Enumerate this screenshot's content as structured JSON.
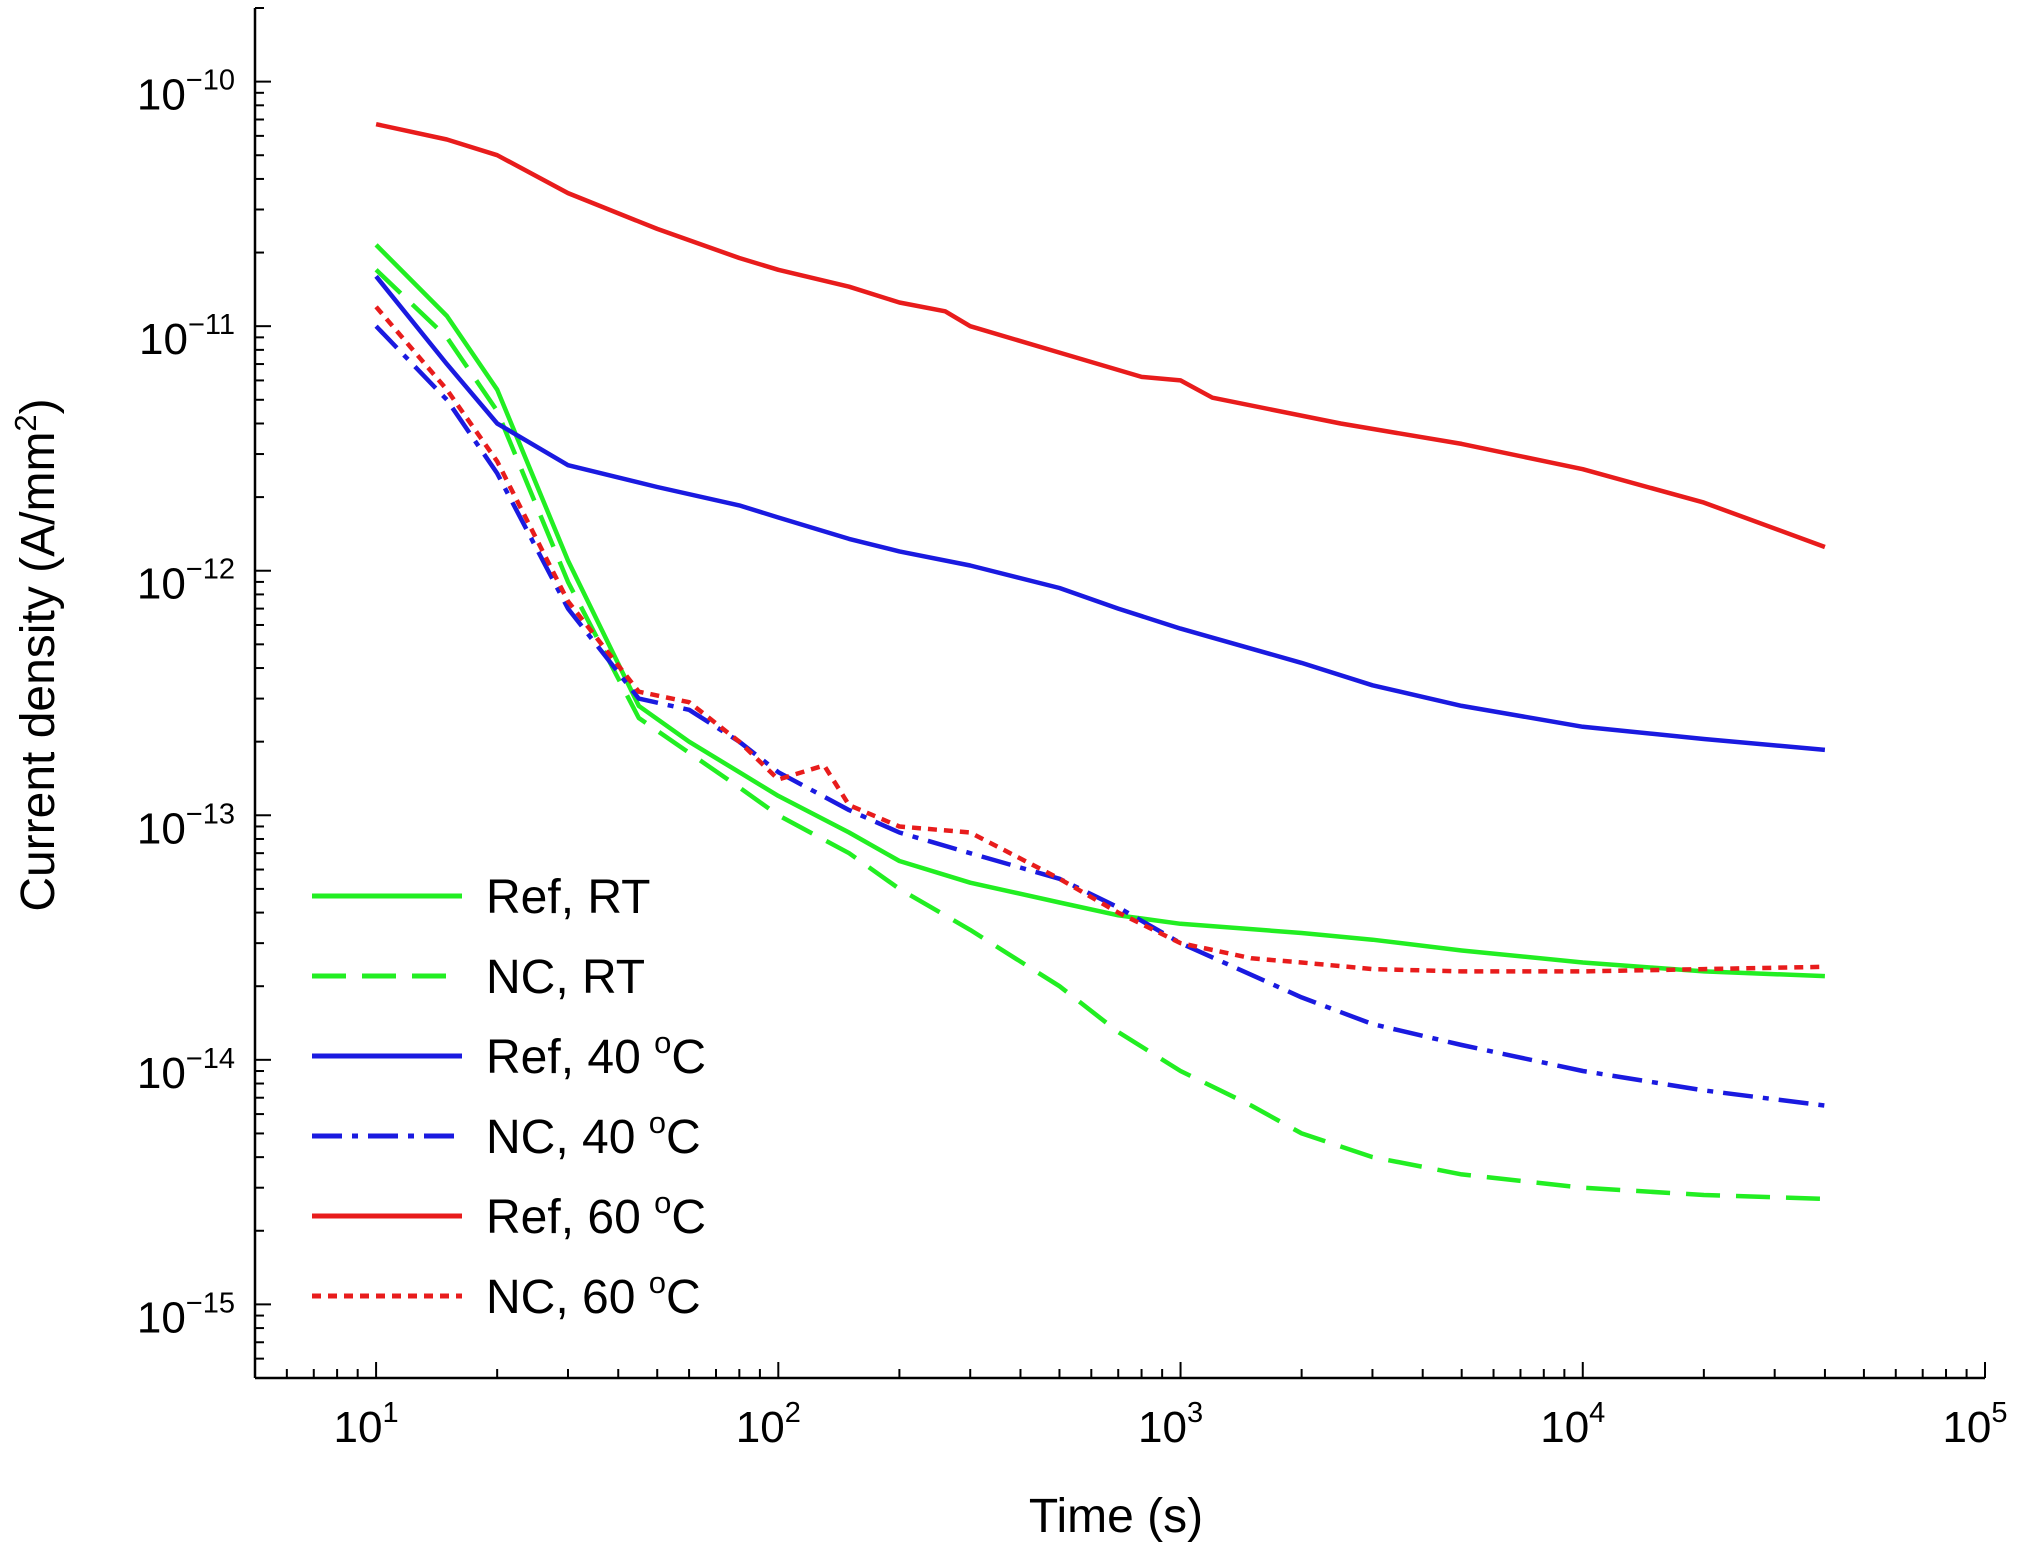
{
  "chart_data": {
    "type": "line",
    "title": "",
    "xlabel": "Time (s)",
    "ylabel_main": "Current density (A/mm",
    "ylabel_sup": "2",
    "ylabel_close": ")",
    "x_scale": "log",
    "y_scale": "log",
    "xlim": [
      5,
      100000
    ],
    "ylim": [
      5e-16,
      2e-10
    ],
    "x_ticks": [
      {
        "base": "10",
        "exp": "1",
        "value": 10
      },
      {
        "base": "10",
        "exp": "2",
        "value": 100
      },
      {
        "base": "10",
        "exp": "3",
        "value": 1000
      },
      {
        "base": "10",
        "exp": "4",
        "value": 10000
      },
      {
        "base": "10",
        "exp": "5",
        "value": 100000
      }
    ],
    "y_ticks": [
      {
        "base": "10",
        "exp": "−10",
        "value": 1e-10
      },
      {
        "base": "10",
        "exp": "−11",
        "value": 1e-11
      },
      {
        "base": "10",
        "exp": "−12",
        "value": 1e-12
      },
      {
        "base": "10",
        "exp": "−13",
        "value": 1e-13
      },
      {
        "base": "10",
        "exp": "−14",
        "value": 1e-14
      },
      {
        "base": "10",
        "exp": "−15",
        "value": 1e-15
      }
    ],
    "grid": false,
    "legend_position": "bottom-left",
    "series": [
      {
        "name": "Ref, RT",
        "legend_text": "Ref, RT",
        "legend_sup": "",
        "color": "#22ee22",
        "dash": "solid",
        "x": [
          10,
          15,
          20,
          30,
          45,
          60,
          80,
          100,
          150,
          200,
          300,
          500,
          700,
          1000,
          2000,
          3000,
          5000,
          10000,
          20000,
          40000
        ],
        "y": [
          2.15e-11,
          1.1e-11,
          5.5e-12,
          1.1e-12,
          2.8e-13,
          2e-13,
          1.5e-13,
          1.2e-13,
          8.5e-14,
          6.5e-14,
          5.3e-14,
          4.4e-14,
          3.9e-14,
          3.6e-14,
          3.3e-14,
          3.1e-14,
          2.8e-14,
          2.5e-14,
          2.3e-14,
          2.2e-14
        ]
      },
      {
        "name": "NC, RT",
        "legend_text": "NC, RT",
        "legend_sup": "",
        "color": "#22ee22",
        "dash": "long",
        "x": [
          10,
          15,
          20,
          30,
          45,
          60,
          80,
          100,
          150,
          200,
          300,
          500,
          700,
          1000,
          1500,
          2000,
          3000,
          5000,
          10000,
          20000,
          40000
        ],
        "y": [
          1.7e-11,
          9e-12,
          4.5e-12,
          9e-13,
          2.5e-13,
          1.8e-13,
          1.3e-13,
          1e-13,
          7e-14,
          5e-14,
          3.4e-14,
          2e-14,
          1.3e-14,
          9e-15,
          6.5e-15,
          5e-15,
          4e-15,
          3.4e-15,
          3e-15,
          2.8e-15,
          2.7e-15
        ]
      },
      {
        "name": "Ref, 40 °C",
        "legend_text": "Ref, 40 ",
        "legend_sup": "o",
        "legend_suffix": "C",
        "color": "#1a1ae0",
        "dash": "solid",
        "x": [
          10,
          15,
          20,
          30,
          50,
          80,
          100,
          150,
          200,
          300,
          500,
          700,
          1000,
          2000,
          3000,
          5000,
          10000,
          20000,
          40000
        ],
        "y": [
          1.6e-11,
          7e-12,
          4e-12,
          2.7e-12,
          2.2e-12,
          1.85e-12,
          1.65e-12,
          1.35e-12,
          1.2e-12,
          1.05e-12,
          8.5e-13,
          7e-13,
          5.8e-13,
          4.2e-13,
          3.4e-13,
          2.8e-13,
          2.3e-13,
          2.05e-13,
          1.85e-13
        ]
      },
      {
        "name": "NC, 40 °C",
        "legend_text": "NC, 40 ",
        "legend_sup": "o",
        "legend_suffix": "C",
        "color": "#1a1ae0",
        "dash": "dashdot",
        "x": [
          10,
          15,
          20,
          30,
          45,
          60,
          80,
          100,
          150,
          200,
          300,
          500,
          700,
          1000,
          2000,
          3000,
          5000,
          10000,
          20000,
          40000
        ],
        "y": [
          1e-11,
          5e-12,
          2.5e-12,
          7e-13,
          3e-13,
          2.7e-13,
          2e-13,
          1.5e-13,
          1.05e-13,
          8.5e-14,
          7e-14,
          5.5e-14,
          4.2e-14,
          3e-14,
          1.8e-14,
          1.4e-14,
          1.15e-14,
          9e-15,
          7.5e-15,
          6.5e-15
        ]
      },
      {
        "name": "Ref, 60 °C",
        "legend_text": "Ref, 60 ",
        "legend_sup": "o",
        "legend_suffix": "C",
        "color": "#e81c1c",
        "dash": "solid",
        "x": [
          10,
          15,
          20,
          30,
          50,
          80,
          100,
          150,
          200,
          260,
          300,
          500,
          800,
          1000,
          1200,
          2500,
          5000,
          10000,
          20000,
          40000
        ],
        "y": [
          6.7e-11,
          5.8e-11,
          5e-11,
          3.5e-11,
          2.5e-11,
          1.9e-11,
          1.7e-11,
          1.45e-11,
          1.25e-11,
          1.15e-11,
          1e-11,
          7.8e-12,
          6.2e-12,
          6e-12,
          5.1e-12,
          4e-12,
          3.3e-12,
          2.6e-12,
          1.9e-12,
          1.25e-12
        ]
      },
      {
        "name": "NC, 60 °C",
        "legend_text": "NC, 60 ",
        "legend_sup": "o",
        "legend_suffix": "C",
        "color": "#e81c1c",
        "dash": "dotted",
        "x": [
          10,
          15,
          20,
          30,
          45,
          60,
          80,
          100,
          130,
          150,
          200,
          300,
          500,
          700,
          1000,
          1500,
          2000,
          3000,
          5000,
          10000,
          20000,
          40000
        ],
        "y": [
          1.2e-11,
          5.5e-12,
          2.8e-12,
          7.5e-13,
          3.2e-13,
          2.9e-13,
          2e-13,
          1.4e-13,
          1.6e-13,
          1.1e-13,
          9e-14,
          8.5e-14,
          5.5e-14,
          4e-14,
          3e-14,
          2.6e-14,
          2.5e-14,
          2.35e-14,
          2.3e-14,
          2.3e-14,
          2.35e-14,
          2.4e-14
        ]
      }
    ]
  }
}
